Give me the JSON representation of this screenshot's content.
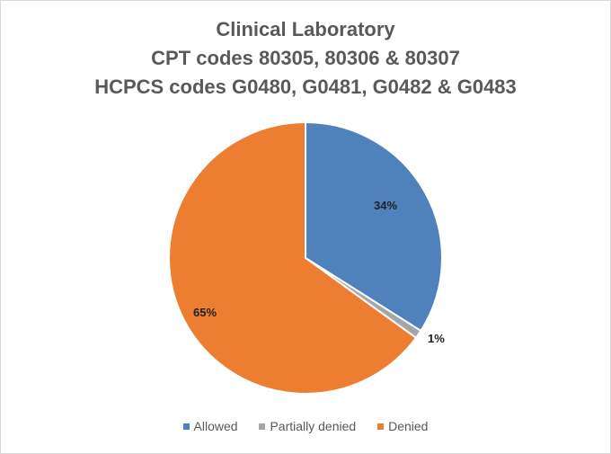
{
  "chart_data": {
    "type": "pie",
    "title": "Clinical Laboratory\nCPT codes 80305, 80306 & 80307\nHCPCS codes G0480, G0481, G0482 & G0483",
    "title_lines": [
      "Clinical Laboratory",
      "CPT codes 80305, 80306 & 80307",
      "HCPCS codes G0480, G0481, G0482 & G0483"
    ],
    "categories": [
      "Allowed",
      "Partially denied",
      "Denied"
    ],
    "values": [
      34,
      1,
      65
    ],
    "labels": [
      "34%",
      "1%",
      "65%"
    ],
    "colors": [
      "#4f81bd",
      "#a5a5a5",
      "#ed7d31"
    ],
    "legend_position": "bottom",
    "start_angle_deg": 0,
    "direction": "clockwise"
  }
}
